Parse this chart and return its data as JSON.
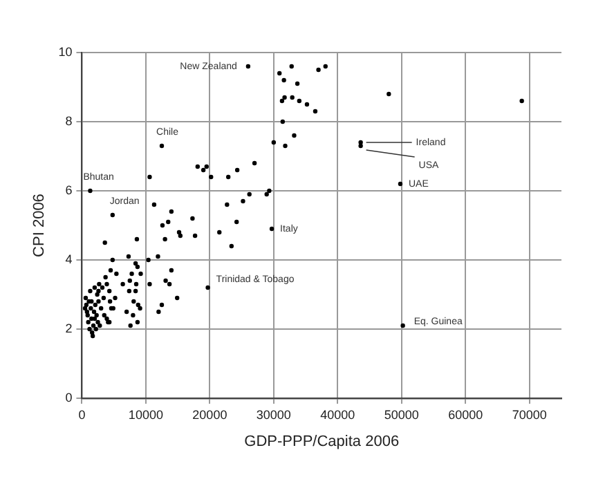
{
  "chart_data": {
    "type": "scatter",
    "xlabel": "GDP-PPP/Capita 2006",
    "ylabel": "CPI 2006",
    "xlim": [
      0,
      75000
    ],
    "ylim": [
      0,
      10
    ],
    "xticks": [
      0,
      10000,
      20000,
      30000,
      40000,
      50000,
      60000,
      70000
    ],
    "yticks": [
      0,
      2,
      4,
      6,
      8,
      10
    ],
    "grid": true,
    "legend": false,
    "marker": "circle",
    "series": [
      {
        "color": "#000000",
        "x": [
          26000,
          30900,
          32800,
          31600,
          33700,
          31300,
          31700,
          32900,
          34000,
          35200,
          36500,
          37000,
          38100,
          31400,
          33200,
          30000,
          31800,
          12500,
          10600,
          18100,
          19000,
          19500,
          20200,
          22900,
          24300,
          27000,
          1300,
          29300,
          28900,
          26200,
          25200,
          22700,
          11300,
          4800,
          14000,
          17300,
          12600,
          13500,
          21500,
          24200,
          15200,
          15400,
          17700,
          29700,
          13000,
          8600,
          3600,
          23400,
          10400,
          11900,
          4800,
          7300,
          8400,
          8700,
          7800,
          9200,
          5400,
          4500,
          14000,
          3700,
          7500,
          13100,
          13700,
          10600,
          6400,
          8500,
          19700,
          7400,
          8400,
          5200,
          14900,
          8100,
          8800,
          12500,
          9100,
          12000,
          7000,
          4600,
          4900,
          3900,
          8000,
          4300,
          8700,
          7600,
          50200,
          48000,
          68800,
          43600,
          43600,
          49800,
          600,
          700,
          800,
          900,
          1000,
          1100,
          1200,
          1300,
          1400,
          1500,
          1600,
          1700,
          1800,
          1900,
          2000,
          2100,
          2200,
          2300,
          2400,
          2500,
          2600,
          2700,
          2800,
          3000,
          3200,
          3400,
          500,
          1500,
          2000,
          2600,
          3900,
          4300,
          4400,
          3500,
          4100
        ],
        "values": [
          9.6,
          9.4,
          9.6,
          9.2,
          9.1,
          8.6,
          8.7,
          8.7,
          8.6,
          8.5,
          8.3,
          9.5,
          9.6,
          8.0,
          7.6,
          7.4,
          7.3,
          7.3,
          6.4,
          6.7,
          6.6,
          6.7,
          6.4,
          6.4,
          6.6,
          6.8,
          6.0,
          6.0,
          5.9,
          5.9,
          5.7,
          5.6,
          5.6,
          5.3,
          5.4,
          5.2,
          5.0,
          5.1,
          4.8,
          5.1,
          4.8,
          4.7,
          4.7,
          4.9,
          4.6,
          4.6,
          4.5,
          4.4,
          4.0,
          4.1,
          4.0,
          4.1,
          3.9,
          3.8,
          3.6,
          3.6,
          3.6,
          3.7,
          3.7,
          3.5,
          3.4,
          3.4,
          3.3,
          3.3,
          3.3,
          3.3,
          3.2,
          3.1,
          3.1,
          2.9,
          2.9,
          2.8,
          2.7,
          2.7,
          2.6,
          2.5,
          2.5,
          2.6,
          2.6,
          2.3,
          2.4,
          2.2,
          2.2,
          2.1,
          2.1,
          8.8,
          8.6,
          7.4,
          7.3,
          6.2,
          2.9,
          2.7,
          2.5,
          2.4,
          2.2,
          2.8,
          2.0,
          3.1,
          2.6,
          2.3,
          1.9,
          1.8,
          2.1,
          2.5,
          3.2,
          2.7,
          2.0,
          2.4,
          3.0,
          2.2,
          2.8,
          3.3,
          2.1,
          2.6,
          3.2,
          2.9,
          2.6,
          2.8,
          2.3,
          3.1,
          3.3,
          3.1,
          2.8,
          2.4,
          2.2
        ]
      }
    ],
    "annotations": [
      {
        "text": "New Zealand",
        "x": 26000,
        "y": 9.6
      },
      {
        "text": "Chile",
        "x": 12500,
        "y": 7.3
      },
      {
        "text": "Bhutan",
        "x": 1300,
        "y": 6.0
      },
      {
        "text": "Jordan",
        "x": 4800,
        "y": 5.3
      },
      {
        "text": "Italy",
        "x": 29700,
        "y": 4.9
      },
      {
        "text": "Trinidad & Tobago",
        "x": 19700,
        "y": 3.2
      },
      {
        "text": "Ireland",
        "x": 43600,
        "y": 7.4
      },
      {
        "text": "USA",
        "x": 43600,
        "y": 7.3
      },
      {
        "text": "UAE",
        "x": 49800,
        "y": 6.2
      },
      {
        "text": "Eq. Guinea",
        "x": 50200,
        "y": 2.1
      }
    ]
  }
}
